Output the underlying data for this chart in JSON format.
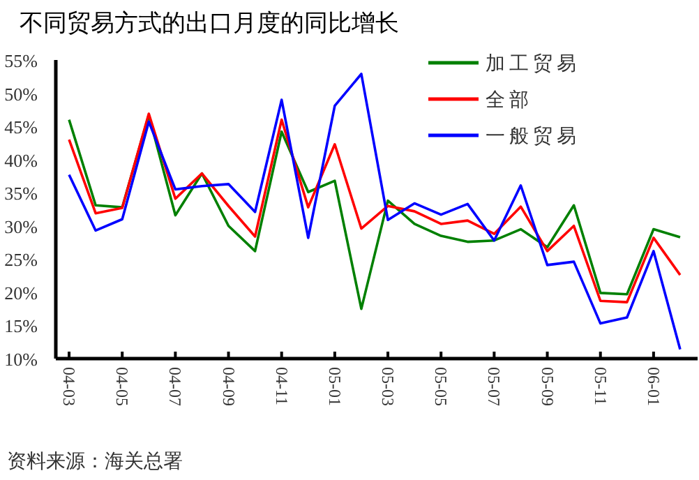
{
  "chart_data": {
    "type": "line",
    "title": "不同贸易方式的出口月度的同比增长",
    "categories": [
      "04-03",
      null,
      "04-05",
      null,
      "04-07",
      null,
      "04-09",
      null,
      "04-11",
      null,
      "05-01",
      null,
      "05-03",
      null,
      "05-05",
      null,
      "05-07",
      null,
      "05-09",
      null,
      "05-11",
      null,
      "06-01",
      null
    ],
    "series": [
      {
        "name": "加工贸易",
        "color": "#008000",
        "values": [
          46.0,
          33.1,
          32.8,
          46.7,
          31.6,
          37.9,
          30.0,
          26.2,
          44.2,
          35.1,
          36.8,
          17.5,
          33.8,
          30.3,
          28.5,
          27.6,
          27.8,
          29.5,
          26.8,
          33.1,
          19.9,
          19.7,
          29.5,
          28.3
        ]
      },
      {
        "name": "全部",
        "color": "#ff0000",
        "values": [
          43.0,
          31.9,
          32.7,
          46.9,
          34.1,
          37.9,
          33.0,
          28.4,
          46.0,
          32.8,
          42.3,
          29.6,
          33.0,
          32.2,
          30.3,
          30.8,
          28.8,
          32.9,
          26.2,
          30.0,
          18.7,
          18.5,
          28.2,
          22.6
        ]
      },
      {
        "name": "一般贸易",
        "color": "#0000ff",
        "values": [
          37.7,
          29.3,
          31.0,
          45.7,
          35.5,
          36.0,
          36.3,
          32.1,
          49.0,
          28.2,
          48.1,
          52.9,
          30.9,
          33.4,
          31.7,
          33.3,
          27.8,
          36.1,
          24.1,
          24.6,
          15.3,
          16.2,
          26.2,
          11.4
        ]
      }
    ],
    "ylim": [
      10,
      55
    ],
    "yticks": [
      {
        "value": 10,
        "label": "10%"
      },
      {
        "value": 15,
        "label": "15%"
      },
      {
        "value": 20,
        "label": "20%"
      },
      {
        "value": 25,
        "label": "25%"
      },
      {
        "value": 30,
        "label": "30%"
      },
      {
        "value": 35,
        "label": "35%"
      },
      {
        "value": 40,
        "label": "40%"
      },
      {
        "value": 45,
        "label": "45%"
      },
      {
        "value": 50,
        "label": "50%"
      },
      {
        "value": 55,
        "label": "55%"
      }
    ],
    "legend": "top right",
    "grid": false,
    "marker": "none",
    "line_style": "solid",
    "annotations": [
      "资料来源：海关总署"
    ]
  }
}
